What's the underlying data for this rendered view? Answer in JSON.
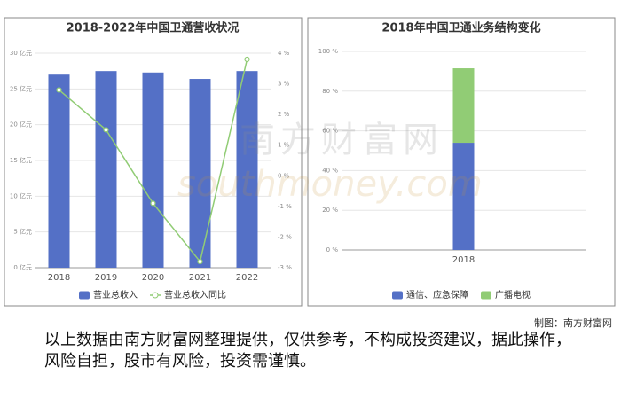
{
  "chart_data": [
    {
      "type": "bar",
      "title": "2018-2022年中国卫通营收状况",
      "categories": [
        "2018",
        "2019",
        "2020",
        "2021",
        "2022"
      ],
      "series": [
        {
          "name": "营业总收入",
          "color": "#5470c6",
          "values": [
            27.0,
            27.5,
            27.3,
            26.4,
            27.5
          ]
        },
        {
          "name": "营业总收入同比",
          "color": "#91cc75",
          "type": "line",
          "axis": "y2",
          "values": [
            2.8,
            1.5,
            -0.9,
            -2.8,
            3.8
          ]
        }
      ],
      "ylim": [
        0,
        30
      ],
      "yticks": [
        {
          "value": 0,
          "label": "0 亿元"
        },
        {
          "value": 5,
          "label": "5 亿元"
        },
        {
          "value": 10,
          "label": "10 亿元"
        },
        {
          "value": 15,
          "label": "15 亿元"
        },
        {
          "value": 20,
          "label": "20 亿元"
        },
        {
          "value": 25,
          "label": "25 亿元"
        },
        {
          "value": 30,
          "label": "30 亿元"
        }
      ],
      "y2lim": [
        -3,
        4
      ],
      "y2ticks": [
        {
          "value": -3,
          "label": "-3 %"
        },
        {
          "value": -2,
          "label": "-2 %"
        },
        {
          "value": -1,
          "label": "-1 %"
        },
        {
          "value": 0,
          "label": "0 %"
        },
        {
          "value": 1,
          "label": "1 %"
        },
        {
          "value": 2,
          "label": "2 %"
        },
        {
          "value": 3,
          "label": "3 %"
        },
        {
          "value": 4,
          "label": "4 %"
        }
      ],
      "grid": true,
      "legend": "bottom"
    },
    {
      "type": "bar",
      "stacked": true,
      "title": "2018年中国卫通业务结构变化",
      "categories": [
        "2018"
      ],
      "series": [
        {
          "name": "通信、应急保障",
          "color": "#5470c6",
          "values": [
            54
          ]
        },
        {
          "name": "广播电视",
          "color": "#91cc75",
          "values": [
            37.5
          ]
        }
      ],
      "ylim": [
        0,
        100
      ],
      "yticks": [
        {
          "value": 0,
          "label": "0 %"
        },
        {
          "value": 20,
          "label": "20 %"
        },
        {
          "value": 40,
          "label": "40 %"
        },
        {
          "value": 60,
          "label": "60 %"
        },
        {
          "value": 80,
          "label": "80 %"
        },
        {
          "value": 100,
          "label": "100 %"
        }
      ],
      "grid": true,
      "legend": "bottom"
    }
  ],
  "watermark": [
    "南方财富网",
    "southmoney.com"
  ],
  "source": "制图：南方财富网",
  "disclaimer": "以上数据由南方财富网整理提供，仅供参考，不构成投资建议，据此操作，风险自担，股市有风险，投资需谨慎。"
}
